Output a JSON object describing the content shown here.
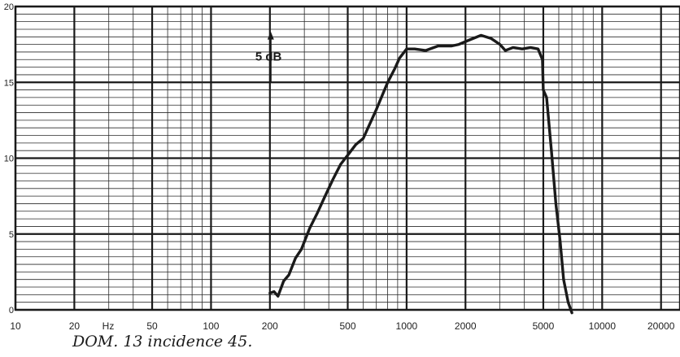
{
  "chart_data": {
    "type": "line",
    "x_scale": "log",
    "xlim": [
      10,
      25000
    ],
    "ylim": [
      0,
      20
    ],
    "grid": true,
    "x_tick_labels": [
      "10",
      "20",
      "50",
      "100",
      "200",
      "500",
      "1000",
      "2000",
      "5000",
      "10000",
      "20000"
    ],
    "x_tick_values": [
      10,
      20,
      50,
      100,
      200,
      500,
      1000,
      2000,
      5000,
      10000,
      20000
    ],
    "x_unit": "Hz",
    "y_tick_labels": [
      "0",
      "5",
      "10",
      "15",
      "20"
    ],
    "y_tick_values": [
      0,
      5,
      10,
      15,
      20
    ],
    "scale_marker": {
      "label": "5 dB",
      "x": 200,
      "y_from": 15,
      "y_to": 18.2
    },
    "series": [
      {
        "points": [
          [
            200,
            1.1
          ],
          [
            210,
            1.2
          ],
          [
            220,
            0.9
          ],
          [
            235,
            1.9
          ],
          [
            250,
            2.3
          ],
          [
            270,
            3.4
          ],
          [
            290,
            4.0
          ],
          [
            320,
            5.4
          ],
          [
            350,
            6.4
          ],
          [
            380,
            7.4
          ],
          [
            420,
            8.6
          ],
          [
            460,
            9.6
          ],
          [
            500,
            10.2
          ],
          [
            550,
            10.9
          ],
          [
            600,
            11.3
          ],
          [
            700,
            13.2
          ],
          [
            800,
            15.0
          ],
          [
            870,
            15.9
          ],
          [
            920,
            16.6
          ],
          [
            1000,
            17.2
          ],
          [
            1100,
            17.2
          ],
          [
            1250,
            17.1
          ],
          [
            1450,
            17.4
          ],
          [
            1700,
            17.4
          ],
          [
            1850,
            17.5
          ],
          [
            2100,
            17.8
          ],
          [
            2400,
            18.1
          ],
          [
            2700,
            17.9
          ],
          [
            3000,
            17.5
          ],
          [
            3200,
            17.1
          ],
          [
            3500,
            17.3
          ],
          [
            3900,
            17.2
          ],
          [
            4300,
            17.3
          ],
          [
            4700,
            17.2
          ],
          [
            4950,
            16.5
          ],
          [
            5000,
            14.5
          ],
          [
            5200,
            14.0
          ],
          [
            5500,
            10.5
          ],
          [
            5800,
            7.0
          ],
          [
            6100,
            4.5
          ],
          [
            6350,
            2.0
          ],
          [
            6700,
            0.5
          ],
          [
            7000,
            -0.2
          ]
        ]
      }
    ]
  },
  "caption": "DOM. 13 incidence 45."
}
